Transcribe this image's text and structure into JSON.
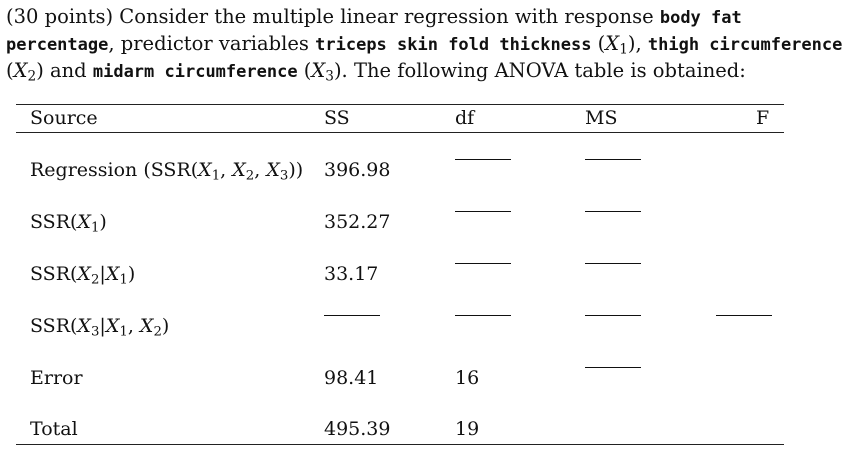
{
  "problem": {
    "t1": "(30 points) Consider the multiple linear regression with response ",
    "response": "body fat percentage",
    "t2": ", predictor variables ",
    "pred1": "triceps skin fold thickness",
    "x1": "X",
    "x1sub": "1",
    "t3": "), ",
    "pred2": "thigh circumference",
    "x2": "X",
    "x2sub": "2",
    "t4": ") and ",
    "pred3": "midarm circumference",
    "x3": "X",
    "x3sub": "3",
    "t5": "). The following ANOVA table is obtained:"
  },
  "table": {
    "headers": {
      "source": "Source",
      "ss": "SS",
      "df": "df",
      "ms": "MS",
      "f": "F"
    },
    "rows": [
      {
        "source": "Regression (SSR(X1, X2, X3))",
        "ss": "396.98",
        "df": "",
        "ms": "",
        "f": ""
      },
      {
        "source": "SSR(X1)",
        "ss": "352.27",
        "df": "",
        "ms": "",
        "f": ""
      },
      {
        "source": "SSR(X2|X1)",
        "ss": "33.17",
        "df": "",
        "ms": "",
        "f": ""
      },
      {
        "source": "SSR(X3|X1, X2)",
        "ss": "",
        "df": "",
        "ms": "",
        "f": ""
      },
      {
        "source": "Error",
        "ss": "98.41",
        "df": "16",
        "ms": "",
        "f": ""
      },
      {
        "source": "Total",
        "ss": "495.39",
        "df": "19",
        "ms": "",
        "f": ""
      }
    ]
  }
}
